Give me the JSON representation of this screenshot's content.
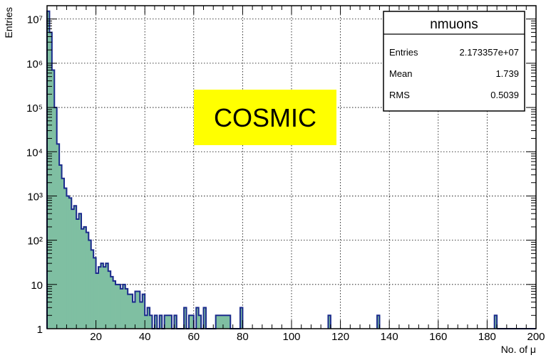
{
  "chart_data": {
    "type": "bar",
    "subtype": "histogram-step-filled",
    "xlabel": "No. of μ",
    "ylabel": "Entries",
    "xlim": [
      0,
      200
    ],
    "ylim": [
      1,
      20000000
    ],
    "log_y": true,
    "grid": true,
    "x_ticks": [
      20,
      40,
      60,
      80,
      100,
      120,
      140,
      160,
      180,
      200
    ],
    "y_ticks": [
      {
        "value": 1,
        "label": "1"
      },
      {
        "value": 10,
        "label": "10"
      },
      {
        "value": 100,
        "label": "10²"
      },
      {
        "value": 1000,
        "label": "10³"
      },
      {
        "value": 10000,
        "label": "10⁴"
      },
      {
        "value": 100000,
        "label": "10⁵"
      },
      {
        "value": 1000000,
        "label": "10⁶"
      },
      {
        "value": 10000000,
        "label": "10⁷"
      }
    ],
    "bin_width": 1,
    "bins": [
      [
        1,
        15000000
      ],
      [
        2,
        5000000
      ],
      [
        3,
        700000
      ],
      [
        4,
        100000
      ],
      [
        5,
        15000
      ],
      [
        6,
        5000
      ],
      [
        7,
        2500
      ],
      [
        8,
        1500
      ],
      [
        9,
        1000
      ],
      [
        10,
        900
      ],
      [
        11,
        500
      ],
      [
        12,
        600
      ],
      [
        13,
        300
      ],
      [
        14,
        400
      ],
      [
        15,
        180
      ],
      [
        16,
        200
      ],
      [
        17,
        150
      ],
      [
        18,
        100
      ],
      [
        19,
        60
      ],
      [
        20,
        40
      ],
      [
        21,
        18
      ],
      [
        22,
        25
      ],
      [
        23,
        30
      ],
      [
        24,
        25
      ],
      [
        25,
        30
      ],
      [
        26,
        20
      ],
      [
        27,
        15
      ],
      [
        28,
        12
      ],
      [
        29,
        10
      ],
      [
        30,
        10
      ],
      [
        31,
        8
      ],
      [
        32,
        10
      ],
      [
        33,
        8
      ],
      [
        34,
        6
      ],
      [
        35,
        6
      ],
      [
        36,
        4
      ],
      [
        37,
        7
      ],
      [
        38,
        7
      ],
      [
        39,
        4
      ],
      [
        40,
        6
      ],
      [
        41,
        2
      ],
      [
        42,
        3
      ],
      [
        43,
        2
      ],
      [
        44,
        1
      ],
      [
        45,
        2
      ],
      [
        46,
        1
      ],
      [
        47,
        2
      ],
      [
        48,
        1
      ],
      [
        49,
        2
      ],
      [
        50,
        2
      ],
      [
        51,
        2
      ],
      [
        52,
        1
      ],
      [
        53,
        2
      ],
      [
        54,
        1
      ],
      [
        55,
        1
      ],
      [
        56,
        1
      ],
      [
        57,
        3
      ],
      [
        58,
        1
      ],
      [
        59,
        2
      ],
      [
        60,
        2
      ],
      [
        61,
        1
      ],
      [
        62,
        3
      ],
      [
        63,
        2
      ],
      [
        64,
        1
      ],
      [
        65,
        3
      ],
      [
        66,
        1
      ],
      [
        67,
        1
      ],
      [
        68,
        1
      ],
      [
        69,
        1
      ],
      [
        70,
        2
      ],
      [
        71,
        2
      ],
      [
        72,
        2
      ],
      [
        73,
        2
      ],
      [
        74,
        2
      ],
      [
        75,
        2
      ],
      [
        76,
        1
      ],
      [
        77,
        1
      ],
      [
        78,
        1
      ],
      [
        79,
        1
      ],
      [
        80,
        3
      ],
      [
        116,
        2
      ],
      [
        136,
        2
      ],
      [
        184,
        2
      ]
    ],
    "fill_color": "#7fbfa2",
    "line_color": "#1a2a8c",
    "stats_box": {
      "title": "nmuons",
      "rows": [
        {
          "label": "Entries",
          "value": "2.173357e+07"
        },
        {
          "label": "Mean",
          "value": "1.739"
        },
        {
          "label": "RMS",
          "value": "0.5039"
        }
      ]
    },
    "annotation": {
      "text": "COSMIC",
      "background": "#ffff00"
    }
  }
}
